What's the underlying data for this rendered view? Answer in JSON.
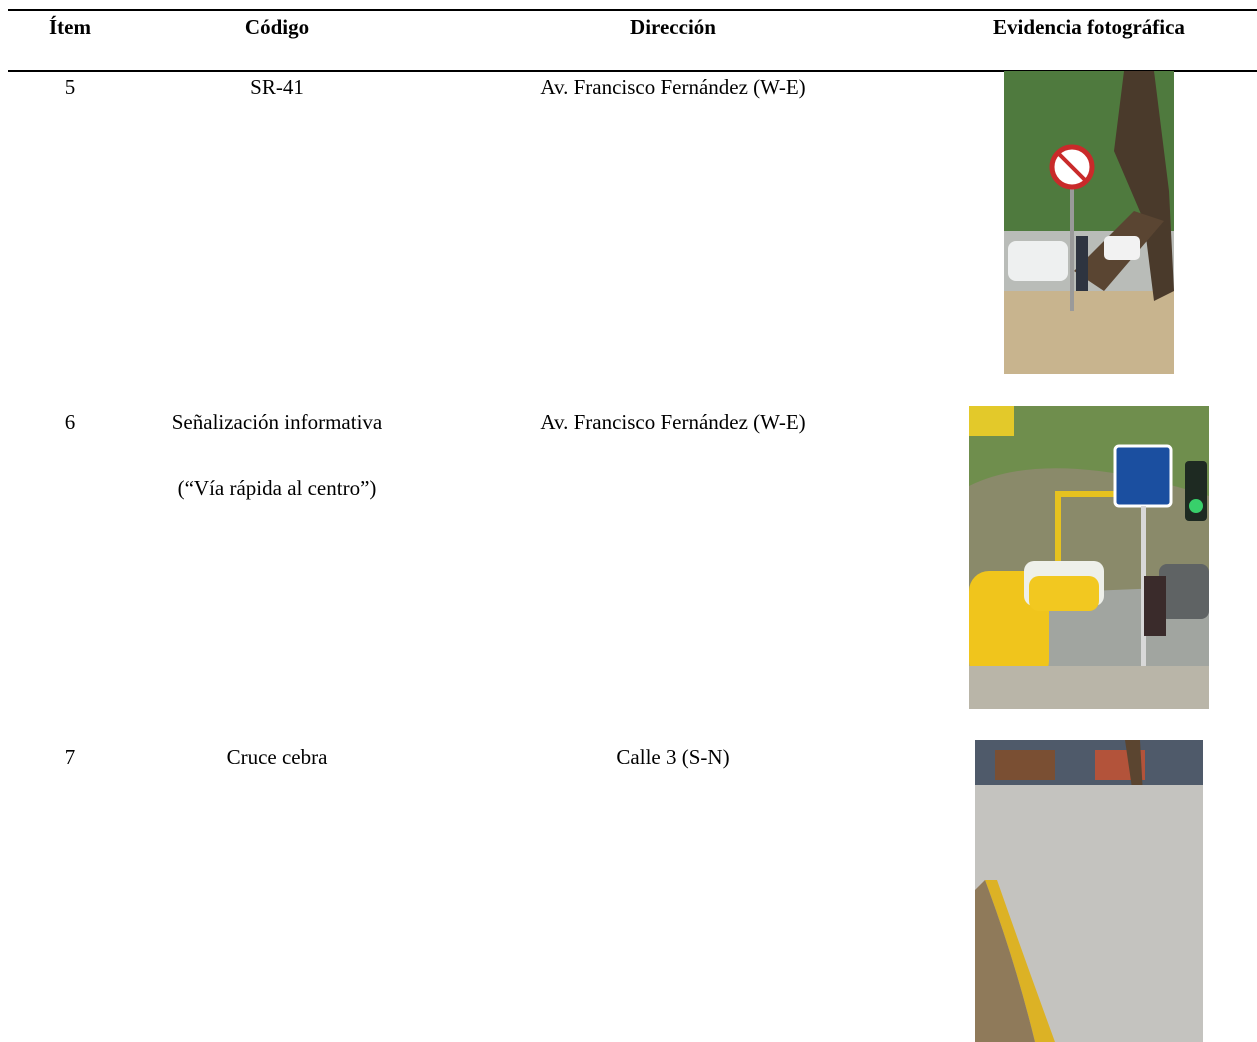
{
  "table": {
    "header": [
      "Ítem",
      "Código",
      "Dirección",
      "Evidencia fotográfica"
    ],
    "rows": [
      {
        "item": "5",
        "code": [
          "SR-41"
        ],
        "address": "Av. Francisco Fernández (W-E)"
      },
      {
        "item": "6",
        "code": [
          "Señalización informativa",
          "(“Vía rápida al centro”)"
        ],
        "address": "Av. Francisco Fernández (W-E)"
      },
      {
        "item": "7",
        "code": [
          "Cruce cebra"
        ],
        "address": "Calle 3 (S-N)"
      }
    ]
  }
}
